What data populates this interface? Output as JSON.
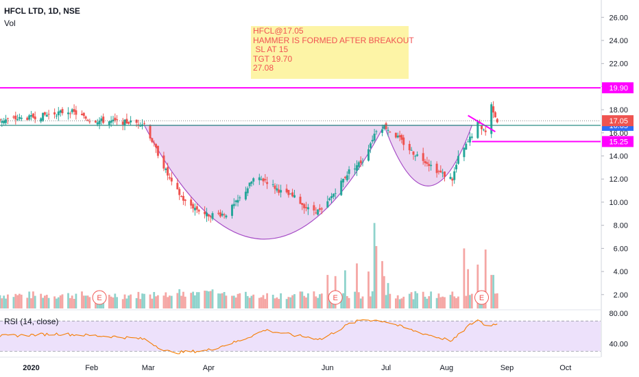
{
  "header": {
    "title": "HFCL LTD, 1D, NSE",
    "volume_label": "Vol",
    "rsi_label": "RSI (14, close)"
  },
  "annotation_note": {
    "lines": [
      "HFCL@17.05",
      "HAMMER IS FORMED AFTER BREAKOUT",
      " SL AT 15",
      "TGT 19.70",
      "27.08"
    ]
  },
  "colors": {
    "up": "#26a69a",
    "down": "#ef5350",
    "volume_up": "#8fd3cc",
    "volume_down": "#f5a6a4",
    "magenta": "#ff00ff",
    "cup_fill": "#e6c8ee",
    "cup_stroke": "#a64cc6",
    "neckline": "#2a8c84",
    "rsi_line": "#f57c00",
    "rsi_band": "#ede1fb",
    "note_bg": "#fdf39a",
    "note_text": "#ef3a3a",
    "price_label_bg": "#ef5350",
    "blue_label_bg": "#2f6cf6"
  },
  "chart_data": [
    {
      "type": "candlestick",
      "title": "HFCL LTD, 1D, NSE",
      "x_axis": {
        "type": "date",
        "range": [
          "2019-12-16",
          "2020-10-19"
        ],
        "tick_labels": [
          {
            "label": "2020",
            "date": "2020-01-01"
          },
          {
            "label": "Feb",
            "date": "2020-02-01"
          },
          {
            "label": "Mar",
            "date": "2020-03-01"
          },
          {
            "label": "Apr",
            "date": "2020-04-01"
          },
          {
            "label": "Jun",
            "date": "2020-06-01"
          },
          {
            "label": "Jul",
            "date": "2020-07-01"
          },
          {
            "label": "Aug",
            "date": "2020-08-01"
          },
          {
            "label": "Sep",
            "date": "2020-09-01"
          },
          {
            "label": "Oct",
            "date": "2020-10-01"
          }
        ]
      },
      "y_axis": {
        "position": "right",
        "range": [
          0.8,
          27.5
        ],
        "ticks": [
          "26.00",
          "24.00",
          "22.00",
          "20.00",
          "18.00",
          "16.00",
          "14.00",
          "12.00",
          "10.00",
          "8.00",
          "6.00",
          "4.00",
          "2.00"
        ]
      },
      "price_keypoints": [
        {
          "date": "2019-12-16",
          "close": 17.1
        },
        {
          "date": "2019-12-31",
          "close": 17.3
        },
        {
          "date": "2020-01-10",
          "close": 17.6
        },
        {
          "date": "2020-01-21",
          "close": 17.9
        },
        {
          "date": "2020-01-31",
          "close": 17.1
        },
        {
          "date": "2020-02-10",
          "close": 17.0
        },
        {
          "date": "2020-02-21",
          "close": 16.9
        },
        {
          "date": "2020-02-28",
          "close": 16.8
        },
        {
          "date": "2020-03-06",
          "close": 14.2
        },
        {
          "date": "2020-03-13",
          "close": 11.6
        },
        {
          "date": "2020-03-20",
          "close": 10.0
        },
        {
          "date": "2020-03-31",
          "close": 8.9
        },
        {
          "date": "2020-04-10",
          "close": 9.0
        },
        {
          "date": "2020-04-17",
          "close": 10.3
        },
        {
          "date": "2020-04-24",
          "close": 12.0
        },
        {
          "date": "2020-04-30",
          "close": 11.9
        },
        {
          "date": "2020-05-08",
          "close": 10.9
        },
        {
          "date": "2020-05-15",
          "close": 10.4
        },
        {
          "date": "2020-05-22",
          "close": 9.4
        },
        {
          "date": "2020-05-29",
          "close": 9.2
        },
        {
          "date": "2020-06-05",
          "close": 11.0
        },
        {
          "date": "2020-06-12",
          "close": 12.7
        },
        {
          "date": "2020-06-19",
          "close": 13.6
        },
        {
          "date": "2020-06-26",
          "close": 16.3
        },
        {
          "date": "2020-06-30",
          "close": 16.6
        },
        {
          "date": "2020-07-07",
          "close": 15.6
        },
        {
          "date": "2020-07-14",
          "close": 14.4
        },
        {
          "date": "2020-07-21",
          "close": 13.6
        },
        {
          "date": "2020-07-28",
          "close": 12.6
        },
        {
          "date": "2020-08-04",
          "close": 12.0
        },
        {
          "date": "2020-08-07",
          "close": 13.8
        },
        {
          "date": "2020-08-12",
          "close": 15.2
        },
        {
          "date": "2020-08-17",
          "close": 16.8
        },
        {
          "date": "2020-08-21",
          "close": 16.1
        },
        {
          "date": "2020-08-24",
          "close": 18.4
        },
        {
          "date": "2020-08-27",
          "close": 17.05
        }
      ],
      "horizontal_lines": [
        {
          "value": 19.9,
          "label": "19.90",
          "color": "#ff00ff"
        },
        {
          "value": 16.65,
          "label": "16.65",
          "color": "#2a8c84"
        },
        {
          "value": 15.25,
          "label": "15.25",
          "color": "#ff00ff"
        }
      ],
      "last_price": {
        "value": 17.05,
        "label": "17.05"
      },
      "cup_patterns": [
        {
          "start_date": "2020-02-28",
          "end_date": "2020-06-30",
          "rim": 16.65,
          "bottom": 6.8
        },
        {
          "start_date": "2020-06-30",
          "end_date": "2020-08-14",
          "rim": 16.65,
          "bottom": 11.4
        }
      ],
      "trendline": {
        "from": {
          "date": "2020-08-12",
          "value": 17.5
        },
        "to": {
          "date": "2020-08-26",
          "value": 16.1
        }
      },
      "earnings_markers": [
        {
          "label": "E",
          "date": "2020-02-05"
        },
        {
          "label": "E",
          "date": "2020-06-05"
        },
        {
          "label": "E",
          "date": "2020-08-19"
        }
      ],
      "volume_pane": {
        "label": "Vol"
      }
    },
    {
      "type": "line",
      "title": "RSI (14, close)",
      "y_axis": {
        "range": [
          25,
          82
        ],
        "ticks": [
          "80.00",
          "40.00"
        ]
      },
      "band": [
        30,
        70
      ],
      "series": [
        {
          "name": "RSI (14, close)",
          "points": [
            {
              "date": "2019-12-16",
              "value": 50
            },
            {
              "date": "2020-01-15",
              "value": 53
            },
            {
              "date": "2020-02-15",
              "value": 49
            },
            {
              "date": "2020-02-28",
              "value": 46
            },
            {
              "date": "2020-03-06",
              "value": 36
            },
            {
              "date": "2020-03-13",
              "value": 28
            },
            {
              "date": "2020-03-31",
              "value": 31
            },
            {
              "date": "2020-04-17",
              "value": 44
            },
            {
              "date": "2020-04-30",
              "value": 58
            },
            {
              "date": "2020-05-15",
              "value": 51
            },
            {
              "date": "2020-05-29",
              "value": 46
            },
            {
              "date": "2020-06-12",
              "value": 66
            },
            {
              "date": "2020-06-19",
              "value": 72
            },
            {
              "date": "2020-06-30",
              "value": 70
            },
            {
              "date": "2020-07-14",
              "value": 58
            },
            {
              "date": "2020-07-28",
              "value": 48
            },
            {
              "date": "2020-08-04",
              "value": 44
            },
            {
              "date": "2020-08-12",
              "value": 63
            },
            {
              "date": "2020-08-17",
              "value": 72
            },
            {
              "date": "2020-08-21",
              "value": 64
            },
            {
              "date": "2020-08-27",
              "value": 66
            }
          ]
        }
      ]
    }
  ]
}
